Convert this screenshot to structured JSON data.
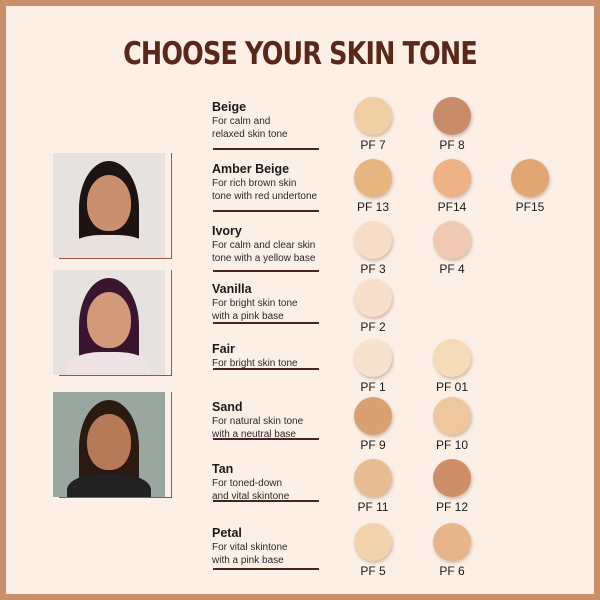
{
  "title": "CHOOSE YOUR SKIN TONE",
  "colors": {
    "background": "#fcefe6",
    "title": "#5a2718",
    "border": "#c8906a",
    "rule": "#4a2418"
  },
  "photos": [
    {
      "icon": "model-photo",
      "skin": "#c98f6e",
      "hair": "#1c1312",
      "top": "#e9e2dc"
    },
    {
      "icon": "model-photo",
      "skin": "#d29a7a",
      "hair": "#3a1530",
      "top": "#efe3e6"
    },
    {
      "icon": "model-photo",
      "skin": "#b77a58",
      "hair": "#2a1a12",
      "top": "#222222"
    }
  ],
  "tones": [
    {
      "name": "Beige",
      "desc": [
        "For calm and",
        "relaxed skin tone"
      ],
      "shades": [
        {
          "code": "PF 7",
          "color": "#f0cfa5"
        },
        {
          "code": "PF 8",
          "color": "#c98c68"
        }
      ]
    },
    {
      "name": "Amber Beige",
      "desc": [
        "For rich brown skin",
        "tone with red undertone"
      ],
      "shades": [
        {
          "code": "PF 13",
          "color": "#e7b57f"
        },
        {
          "code": "PF14",
          "color": "#edb386"
        },
        {
          "code": "PF15",
          "color": "#e0a674"
        }
      ]
    },
    {
      "name": "Ivory",
      "desc": [
        "For calm and clear skin",
        "tone with a yellow base"
      ],
      "shades": [
        {
          "code": "PF 3",
          "color": "#f7dcc8"
        },
        {
          "code": "PF 4",
          "color": "#efc9b1"
        }
      ]
    },
    {
      "name": "Vanilla",
      "desc": [
        "For bright skin tone",
        "with a pink base"
      ],
      "shades": [
        {
          "code": "PF 2",
          "color": "#f8dfcc"
        }
      ]
    },
    {
      "name": "Fair",
      "desc": [
        "For bright skin tone"
      ],
      "shades": [
        {
          "code": "PF 1",
          "color": "#f7e2cf"
        },
        {
          "code": "PF 01",
          "color": "#f6dbb8"
        }
      ]
    },
    {
      "name": "Sand",
      "desc": [
        "For natural skin tone",
        "with a neutral base"
      ],
      "shades": [
        {
          "code": "PF 9",
          "color": "#daa170"
        },
        {
          "code": "PF 10",
          "color": "#efc79f"
        }
      ]
    },
    {
      "name": "Tan",
      "desc": [
        "For toned-down",
        "and vital skintone"
      ],
      "shades": [
        {
          "code": "PF 11",
          "color": "#e8bc92"
        },
        {
          "code": "PF 12",
          "color": "#cd8e68"
        }
      ]
    },
    {
      "name": "Petal",
      "desc": [
        "For vital skintone",
        "with a pink base"
      ],
      "shades": [
        {
          "code": "PF 5",
          "color": "#f2d3ae"
        },
        {
          "code": "PF 6",
          "color": "#e6b58a"
        }
      ]
    }
  ]
}
